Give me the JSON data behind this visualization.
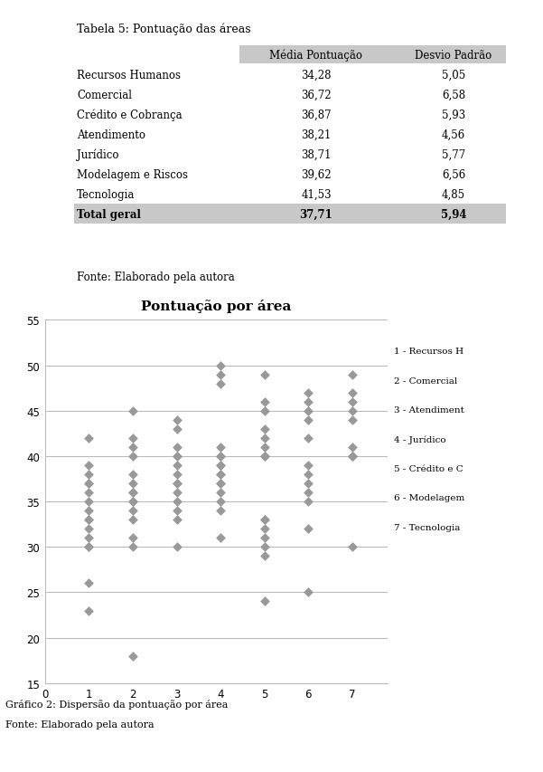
{
  "title": "Pontuação por área",
  "table_title": "Tabela 5: Pontuação das áreas",
  "table_header": [
    "Média Pontuação",
    "Desvio Padrão"
  ],
  "table_rows": [
    [
      "Recursos Humanos",
      "34,28",
      "5,05"
    ],
    [
      "Comercial",
      "36,72",
      "6,58"
    ],
    [
      "Crédito e Cobrança",
      "36,87",
      "5,93"
    ],
    [
      "Atendimento",
      "38,21",
      "4,56"
    ],
    [
      "Jurídico",
      "38,71",
      "5,77"
    ],
    [
      "Modelagem e Riscos",
      "39,62",
      "6,56"
    ],
    [
      "Tecnologia",
      "41,53",
      "4,85"
    ],
    [
      "Total geral",
      "37,71",
      "5,94"
    ]
  ],
  "table_source": "Fonte: Elaborado pela autora",
  "scatter_data": {
    "1": [
      42,
      39,
      38,
      37,
      37,
      36,
      35,
      34,
      33,
      33,
      32,
      31,
      30,
      30,
      26,
      23
    ],
    "2": [
      45,
      42,
      41,
      40,
      38,
      37,
      36,
      36,
      35,
      35,
      34,
      33,
      31,
      30,
      18
    ],
    "3": [
      44,
      43,
      41,
      40,
      40,
      39,
      38,
      37,
      37,
      36,
      35,
      34,
      33,
      30
    ],
    "4": [
      50,
      49,
      48,
      41,
      40,
      40,
      39,
      39,
      38,
      38,
      37,
      37,
      36,
      35,
      34,
      31
    ],
    "5": [
      49,
      46,
      45,
      43,
      42,
      41,
      40,
      40,
      40,
      33,
      33,
      32,
      31,
      30,
      29,
      24
    ],
    "6": [
      47,
      46,
      45,
      44,
      42,
      39,
      38,
      37,
      36,
      35,
      32,
      25
    ],
    "7": [
      49,
      47,
      46,
      45,
      44,
      41,
      40,
      40,
      40,
      40,
      30
    ]
  },
  "legend": [
    "1 - Recursos H",
    "2 - Comercial",
    "3 - Atendiment",
    "4 - Jurídico",
    "5 - Crédito e C",
    "6 - Modelagem",
    "7 - Tecnologia"
  ],
  "caption1": "Gráfico 2: Dispersão da pontuação por área",
  "caption2": "Fonte: Elaborado pela autora",
  "marker_color": "#999999",
  "marker_size": 30,
  "xlim": [
    0,
    7.8
  ],
  "ylim": [
    15,
    55
  ],
  "yticks": [
    15,
    20,
    25,
    30,
    35,
    40,
    45,
    50,
    55
  ],
  "xticks": [
    0,
    1,
    2,
    3,
    4,
    5,
    6,
    7
  ],
  "background_color": "#ffffff",
  "grid_color": "#bbbbbb",
  "table_col_gray": "#c8c8c8"
}
